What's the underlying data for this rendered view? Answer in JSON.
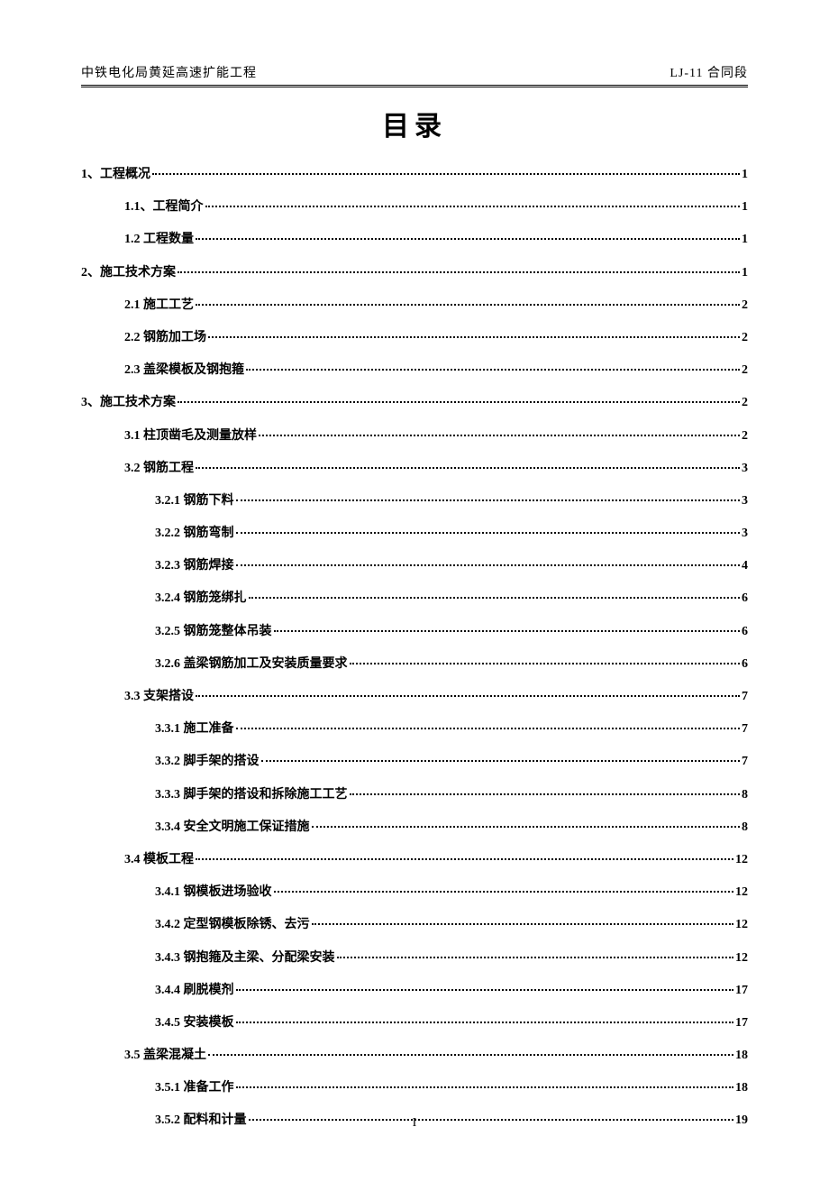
{
  "header": {
    "left": "中铁电化局黄延高速扩能工程",
    "right": "LJ-11 合同段"
  },
  "title": "目录",
  "toc": [
    {
      "level": 1,
      "label": "1、工程概况",
      "page": "1"
    },
    {
      "level": 2,
      "label": "1.1、工程简介",
      "page": "1"
    },
    {
      "level": 2,
      "label": "1.2 工程数量",
      "page": "1"
    },
    {
      "level": 1,
      "label": "2、施工技术方案",
      "page": "1"
    },
    {
      "level": 2,
      "label": "2.1 施工工艺",
      "page": "2"
    },
    {
      "level": 2,
      "label": "2.2 钢筋加工场",
      "page": "2"
    },
    {
      "level": 2,
      "label": "2.3 盖梁模板及钢抱箍",
      "page": "2"
    },
    {
      "level": 1,
      "label": "3、施工技术方案",
      "page": "2"
    },
    {
      "level": 2,
      "label": "3.1 柱顶凿毛及测量放样",
      "page": "2"
    },
    {
      "level": 2,
      "label": "3.2 钢筋工程",
      "page": "3"
    },
    {
      "level": 3,
      "label": "3.2.1 钢筋下料",
      "page": "3"
    },
    {
      "level": 3,
      "label": "3.2.2 钢筋弯制",
      "page": "3"
    },
    {
      "level": 3,
      "label": "3.2.3 钢筋焊接",
      "page": "4"
    },
    {
      "level": 3,
      "label": "3.2.4 钢筋笼绑扎",
      "page": "6"
    },
    {
      "level": 3,
      "label": "3.2.5 钢筋笼整体吊装",
      "page": "6"
    },
    {
      "level": 3,
      "label": "3.2.6 盖梁钢筋加工及安装质量要求",
      "page": "6"
    },
    {
      "level": 2,
      "label": "3.3 支架搭设",
      "page": "7"
    },
    {
      "level": 3,
      "label": "3.3.1 施工准备",
      "page": "7"
    },
    {
      "level": 3,
      "label": "3.3.2 脚手架的搭设",
      "page": "7"
    },
    {
      "level": 3,
      "label": "3.3.3 脚手架的搭设和拆除施工工艺",
      "page": "8"
    },
    {
      "level": 3,
      "label": "3.3.4 安全文明施工保证措施",
      "page": "8"
    },
    {
      "level": 2,
      "label": "3.4 模板工程",
      "page": "12"
    },
    {
      "level": 3,
      "label": "3.4.1 钢模板进场验收",
      "page": "12"
    },
    {
      "level": 3,
      "label": "3.4.2 定型钢模板除锈、去污",
      "page": "12"
    },
    {
      "level": 3,
      "label": "3.4.3 钢抱箍及主梁、分配梁安装",
      "page": "12"
    },
    {
      "level": 3,
      "label": "3.4.4 刷脱模剂",
      "page": "17"
    },
    {
      "level": 3,
      "label": "3.4.5 安装模板",
      "page": "17"
    },
    {
      "level": 2,
      "label": "3.5 盖梁混凝土",
      "page": "18"
    },
    {
      "level": 3,
      "label": "3.5.1 准备工作",
      "page": "18"
    },
    {
      "level": 3,
      "label": "3.5.2 配料和计量",
      "page": "19"
    }
  ],
  "pageNumber": "I"
}
